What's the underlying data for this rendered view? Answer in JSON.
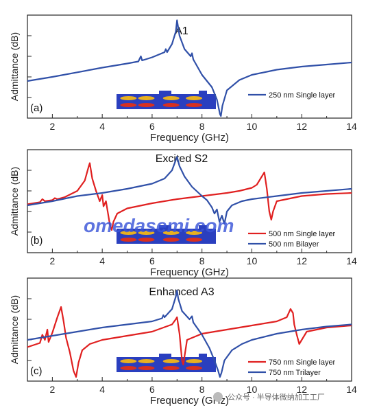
{
  "watermark": "omedasemi.com",
  "footer": "公众号 · 半导体微纳加工工厂",
  "chart_data": [
    {
      "type": "line",
      "title": "A1",
      "panel_tag": "(a)",
      "xlabel": "Frequency (GHz)",
      "ylabel": "Admittance (dB)",
      "xlim": [
        1,
        14
      ],
      "xticks": [
        2,
        4,
        6,
        8,
        10,
        12,
        14
      ],
      "yticks": 4,
      "legend_position": "lower-right",
      "series": [
        {
          "name": "250 nm Single layer",
          "color": "#3050a8",
          "x": [
            1.0,
            2.0,
            3.0,
            4.0,
            5.0,
            5.45,
            5.55,
            5.6,
            6.0,
            6.5,
            6.55,
            6.6,
            6.8,
            6.95,
            7.0,
            7.1,
            7.3,
            7.55,
            7.6,
            7.65,
            8.0,
            8.4,
            8.6,
            8.72,
            8.76,
            8.82,
            9.0,
            9.5,
            10.0,
            11.0,
            12.0,
            13.0,
            14.0
          ],
          "y": [
            0.36,
            0.4,
            0.445,
            0.49,
            0.53,
            0.55,
            0.6,
            0.56,
            0.59,
            0.64,
            0.67,
            0.64,
            0.72,
            0.84,
            0.95,
            0.8,
            0.67,
            0.6,
            0.63,
            0.57,
            0.42,
            0.3,
            0.18,
            0.04,
            0.02,
            0.12,
            0.27,
            0.37,
            0.42,
            0.47,
            0.5,
            0.52,
            0.54
          ]
        }
      ]
    },
    {
      "type": "line",
      "title": "Excited S2",
      "panel_tag": "(b)",
      "xlabel": "Frequency (GHz)",
      "ylabel": "Admittance (dB)",
      "xlim": [
        1,
        14
      ],
      "xticks": [
        2,
        4,
        6,
        8,
        10,
        12,
        14
      ],
      "yticks": 4,
      "legend_position": "lower-right",
      "series": [
        {
          "name": "500 nm Single layer",
          "color": "#e02020",
          "x": [
            1.0,
            1.5,
            1.6,
            1.7,
            2.0,
            2.1,
            2.2,
            2.5,
            3.0,
            3.3,
            3.45,
            3.5,
            3.6,
            3.75,
            3.9,
            4.0,
            4.05,
            4.15,
            4.3,
            4.38,
            4.45,
            4.6,
            5.0,
            6.0,
            7.0,
            8.0,
            9.0,
            9.5,
            10.0,
            10.2,
            10.4,
            10.5,
            10.6,
            10.7,
            10.78,
            10.85,
            11.0,
            12.0,
            13.0,
            14.0
          ],
          "y": [
            0.47,
            0.49,
            0.52,
            0.5,
            0.51,
            0.53,
            0.52,
            0.54,
            0.6,
            0.7,
            0.83,
            0.87,
            0.72,
            0.6,
            0.5,
            0.56,
            0.45,
            0.5,
            0.28,
            0.22,
            0.3,
            0.38,
            0.43,
            0.48,
            0.52,
            0.55,
            0.58,
            0.6,
            0.63,
            0.66,
            0.74,
            0.78,
            0.62,
            0.4,
            0.32,
            0.4,
            0.5,
            0.55,
            0.57,
            0.58
          ]
        },
        {
          "name": "500 nm Bilayer",
          "color": "#3050a8",
          "x": [
            1.0,
            2.0,
            3.0,
            4.0,
            5.0,
            6.0,
            6.5,
            6.8,
            6.95,
            7.0,
            7.1,
            7.3,
            7.6,
            8.0,
            8.2,
            8.4,
            8.5,
            8.6,
            8.7,
            8.8,
            8.9,
            9.0,
            9.2,
            9.6,
            10.0,
            11.0,
            12.0,
            13.0,
            14.0
          ],
          "y": [
            0.46,
            0.5,
            0.55,
            0.58,
            0.62,
            0.67,
            0.72,
            0.8,
            0.9,
            0.93,
            0.84,
            0.74,
            0.64,
            0.55,
            0.51,
            0.44,
            0.38,
            0.42,
            0.3,
            0.36,
            0.28,
            0.4,
            0.46,
            0.5,
            0.52,
            0.55,
            0.58,
            0.6,
            0.62
          ]
        }
      ]
    },
    {
      "type": "line",
      "title": "Enhanced A3",
      "panel_tag": "(c)",
      "xlabel": "Frequency (GHz)",
      "ylabel": "Admittance (dB)",
      "xlim": [
        1,
        14
      ],
      "xticks": [
        2,
        4,
        6,
        8,
        10,
        12,
        14
      ],
      "yticks": 4,
      "legend_position": "lower-right",
      "series": [
        {
          "name": "750 nm Single layer",
          "color": "#e02020",
          "x": [
            1.0,
            1.5,
            1.6,
            1.7,
            1.75,
            1.8,
            1.85,
            2.0,
            2.2,
            2.35,
            2.45,
            2.55,
            2.7,
            2.85,
            2.95,
            3.05,
            3.2,
            3.5,
            4.0,
            5.0,
            6.0,
            6.8,
            6.95,
            7.0,
            7.1,
            7.2,
            7.25,
            7.4,
            8.0,
            9.0,
            10.0,
            11.0,
            11.4,
            11.55,
            11.65,
            11.7,
            11.8,
            11.9,
            12.2,
            13.0,
            14.0
          ],
          "y": [
            0.33,
            0.37,
            0.45,
            0.4,
            0.45,
            0.5,
            0.38,
            0.47,
            0.62,
            0.72,
            0.58,
            0.42,
            0.28,
            0.1,
            0.04,
            0.18,
            0.3,
            0.36,
            0.4,
            0.44,
            0.48,
            0.55,
            0.6,
            0.62,
            0.46,
            0.2,
            0.16,
            0.4,
            0.46,
            0.5,
            0.54,
            0.58,
            0.62,
            0.7,
            0.66,
            0.55,
            0.45,
            0.36,
            0.48,
            0.52,
            0.54
          ]
        },
        {
          "name": "750 nm Trilayer",
          "color": "#3050a8",
          "x": [
            1.0,
            2.0,
            3.0,
            4.0,
            5.0,
            6.0,
            6.4,
            6.45,
            6.5,
            6.8,
            6.95,
            7.0,
            7.05,
            7.2,
            7.5,
            7.6,
            7.65,
            8.0,
            8.3,
            8.5,
            8.65,
            8.72,
            8.78,
            8.9,
            9.2,
            9.6,
            10.0,
            11.0,
            12.0,
            13.0,
            14.0
          ],
          "y": [
            0.4,
            0.44,
            0.48,
            0.52,
            0.55,
            0.58,
            0.61,
            0.64,
            0.62,
            0.7,
            0.82,
            0.88,
            0.8,
            0.68,
            0.6,
            0.63,
            0.57,
            0.45,
            0.32,
            0.2,
            0.1,
            0.04,
            0.08,
            0.2,
            0.3,
            0.36,
            0.4,
            0.46,
            0.5,
            0.53,
            0.55
          ]
        }
      ]
    }
  ]
}
